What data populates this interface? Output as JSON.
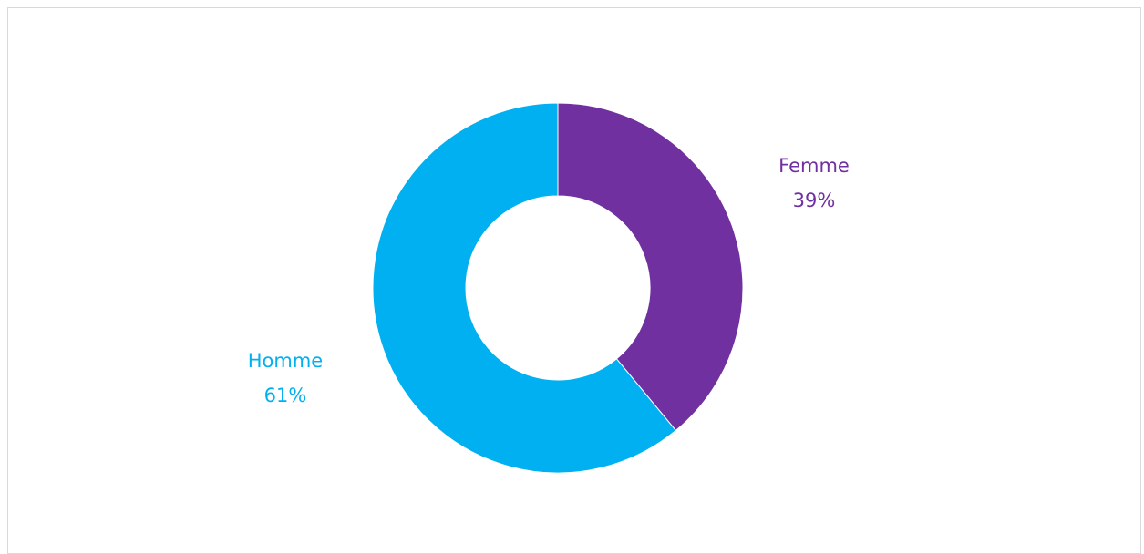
{
  "chart_data": {
    "type": "pie",
    "variant": "donut",
    "title": "",
    "categories": [
      "Homme",
      "Femme"
    ],
    "values": [
      61,
      39
    ],
    "unit": "%",
    "series": [
      {
        "values": [
          61,
          39
        ],
        "colors": [
          "#00b0f0",
          "#7030a0"
        ]
      }
    ],
    "data_labels": [
      {
        "category": "Femme",
        "name": "Femme",
        "value_text": "39%",
        "color": "#7030a0"
      },
      {
        "category": "Homme",
        "name": "Homme",
        "value_text": "61%",
        "color": "#00b0f0"
      }
    ],
    "legend": "none",
    "grid": false,
    "start_angle_deg": 0,
    "direction": "clockwise",
    "border_color": "#d9d9d9"
  }
}
